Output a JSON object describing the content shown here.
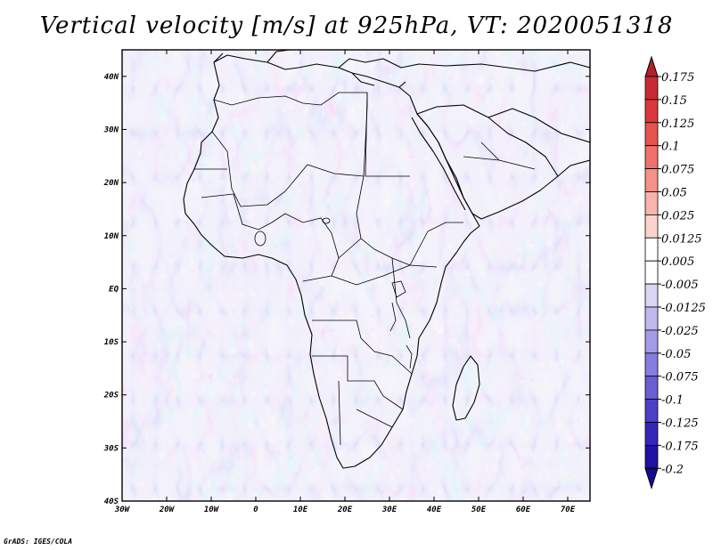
{
  "title": "Vertical velocity [m/s] at 925hPa, VT: 2020051318",
  "credit": "GrADS: IGES/COLA",
  "map": {
    "lon_range": [
      -30,
      75
    ],
    "lat_range": [
      -40,
      45
    ],
    "x_ticks": [
      "30W",
      "20W",
      "10W",
      "0",
      "10E",
      "20E",
      "30E",
      "40E",
      "50E",
      "60E",
      "70E"
    ],
    "y_ticks": [
      "40S",
      "30S",
      "20S",
      "10S",
      "EQ",
      "10N",
      "20N",
      "30N",
      "40N"
    ]
  },
  "colorbar": {
    "levels": [
      "0.175",
      "0.15",
      "0.125",
      "0.1",
      "0.075",
      "0.05",
      "0.025",
      "0.0125",
      "0.005",
      "-0.005",
      "-0.0125",
      "-0.025",
      "-0.05",
      "-0.075",
      "-0.1",
      "-0.125",
      "-0.175",
      "-0.2"
    ],
    "colors": [
      "#b0202a",
      "#c82a33",
      "#d9383d",
      "#e65450",
      "#ee726b",
      "#f39289",
      "#f8b3aa",
      "#fbd3cc",
      "#ffffff",
      "#ffffff",
      "#dad6f4",
      "#c0b9ee",
      "#a39be6",
      "#877ddd",
      "#6a5ed2",
      "#4d40c6",
      "#3426b6",
      "#1f12a2",
      "#130a90"
    ]
  }
}
